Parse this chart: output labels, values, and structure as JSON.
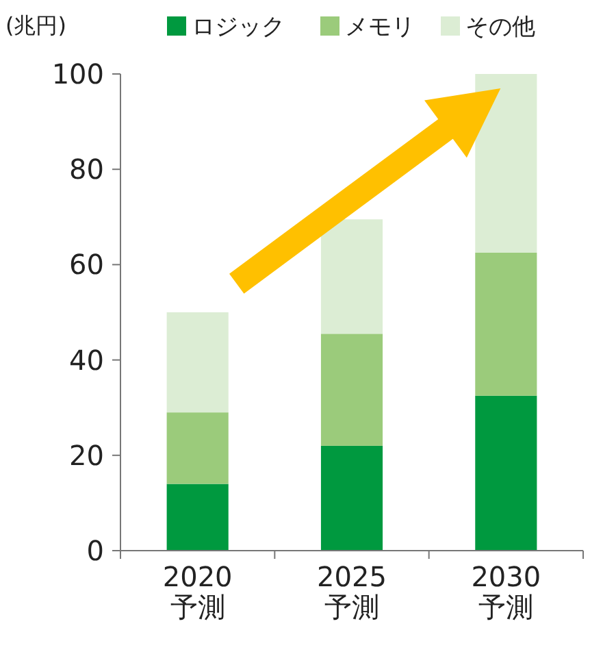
{
  "chart_data": {
    "type": "bar",
    "stacked": true,
    "ylabel": "(兆円)",
    "categories": [
      "2020\n予測",
      "2025\n予測",
      "2030\n予測"
    ],
    "series": [
      {
        "name": "ロジック",
        "color": "#00993f",
        "values": [
          14,
          22,
          32.5
        ]
      },
      {
        "name": "メモリ",
        "color": "#9bcb7b",
        "values": [
          15,
          23.5,
          30
        ]
      },
      {
        "name": "その他",
        "color": "#dcedd4",
        "values": [
          21,
          24,
          37.5
        ]
      }
    ],
    "ylim": [
      0,
      100
    ],
    "yticks": [
      0,
      20,
      40,
      60,
      80,
      100
    ],
    "grid": false,
    "legend": "top right"
  }
}
